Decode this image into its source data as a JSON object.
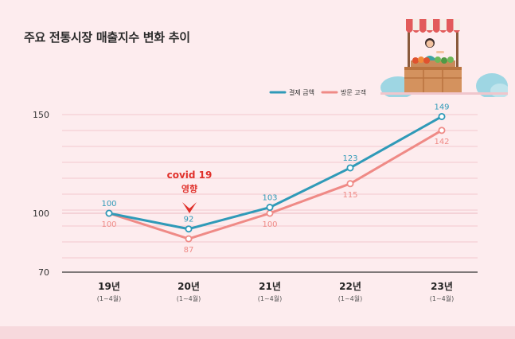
{
  "title": "주요 전통시장 매출지수 변화 추이",
  "annotation": {
    "line1": "covid 19",
    "line2": "영향"
  },
  "colors": {
    "payment": "#2f9ab8",
    "visitors": "#ef8a86",
    "annotation": "#e0302a",
    "background": "#fdecee"
  },
  "chart_data": {
    "type": "line",
    "title": "주요 전통시장 매출지수 변화 추이",
    "categories": [
      "19년",
      "20년",
      "21년",
      "22년",
      "23년"
    ],
    "category_sublabels": [
      "(1~4월)",
      "(1~4월)",
      "(1~4월)",
      "(1~4월)",
      "(1~4월)"
    ],
    "series": [
      {
        "name": "결제 금액",
        "values": [
          100,
          92,
          103,
          123,
          149
        ],
        "color": "#2f9ab8"
      },
      {
        "name": "방문 고객",
        "values": [
          100,
          87,
          100,
          115,
          142
        ],
        "color": "#ef8a86"
      }
    ],
    "y_ticks": [
      70,
      100,
      150
    ],
    "ylim": [
      70,
      155
    ],
    "grid": true,
    "legend_position": "top-right"
  }
}
